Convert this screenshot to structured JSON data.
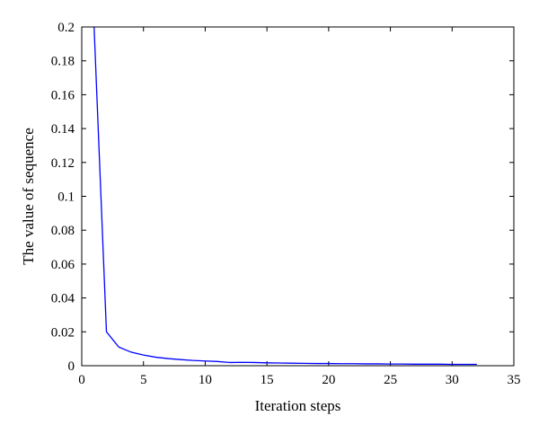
{
  "chart_data": {
    "type": "line",
    "title": "",
    "xlabel": "Iteration steps",
    "ylabel": "The value of sequence",
    "xlim": [
      0,
      35
    ],
    "ylim": [
      0,
      0.2
    ],
    "xticks": [
      "0",
      "5",
      "10",
      "15",
      "20",
      "25",
      "30",
      "35"
    ],
    "yticks": [
      "0",
      "0.02",
      "0.04",
      "0.06",
      "0.08",
      "0.1",
      "0.12",
      "0.14",
      "0.16",
      "0.18",
      "0.2"
    ],
    "grid": false,
    "legend": "none",
    "series": [
      {
        "color": "#0000ff",
        "x": [
          1,
          2,
          3,
          4,
          5,
          6,
          7,
          8,
          9,
          10,
          11,
          12,
          13,
          14,
          15,
          16,
          17,
          18,
          19,
          20,
          21,
          22,
          23,
          24,
          25,
          26,
          27,
          28,
          29,
          30,
          31,
          32
        ],
        "y": [
          0.2,
          0.02,
          0.011,
          0.008,
          0.0063,
          0.005,
          0.0042,
          0.0036,
          0.0031,
          0.0028,
          0.0025,
          0.0019,
          0.002,
          0.0019,
          0.0017,
          0.0016,
          0.0015,
          0.0014,
          0.0013,
          0.0013,
          0.0012,
          0.0012,
          0.0011,
          0.0011,
          0.001,
          0.001,
          0.0009,
          0.0009,
          0.0009,
          0.0008,
          0.0008,
          0.0008
        ]
      }
    ]
  }
}
